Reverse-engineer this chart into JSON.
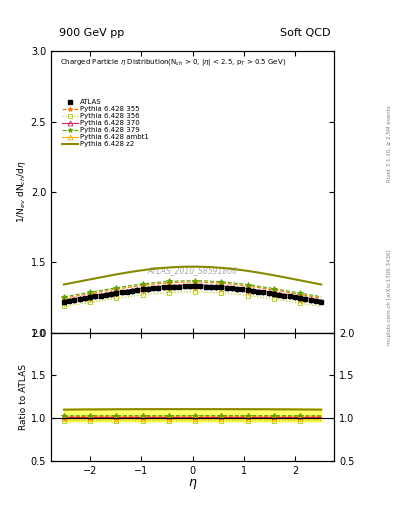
{
  "title_left": "900 GeV pp",
  "title_right": "Soft QCD",
  "ylabel_main": "1/N$_{ev}$ dN$_{ch}$/d$\\eta$",
  "ylabel_ratio": "Ratio to ATLAS",
  "xlabel": "$\\eta$",
  "annotation": "ATLAS_2010_S8591806",
  "right_label_top": "Rivet 3.1.10, ≥ 2.5M events",
  "right_label_bot": "mcplots.cern.ch [arXiv:1306.3436]",
  "plot_annotation": "Charged Particle $\\eta$ Distribution(N$_{ch}$ > 0, |$\\eta$| < 2.5, p$_T$ > 0.5 GeV)",
  "ylim_main": [
    1.0,
    3.0
  ],
  "ylim_ratio": [
    0.5,
    2.0
  ],
  "xlim": [
    -2.75,
    2.75
  ],
  "yticks_main": [
    1.0,
    1.5,
    2.0,
    2.5,
    3.0
  ],
  "yticks_ratio": [
    0.5,
    1.0,
    1.5,
    2.0
  ],
  "series": [
    {
      "label": "ATLAS",
      "color": "#000000",
      "marker": "s",
      "linestyle": "none",
      "linewidth": 0,
      "markersize": 3
    },
    {
      "label": "Pythia 6.428 355",
      "color": "#ff7700",
      "marker": "*",
      "linestyle": "--",
      "linewidth": 0.8,
      "markersize": 4,
      "markerfacecolor": "#ff7700"
    },
    {
      "label": "Pythia 6.428 356",
      "color": "#aacc00",
      "marker": "s",
      "linestyle": ":",
      "linewidth": 0.8,
      "markersize": 3,
      "markerfacecolor": "none"
    },
    {
      "label": "Pythia 6.428 370",
      "color": "#cc2255",
      "marker": "^",
      "linestyle": "-",
      "linewidth": 0.8,
      "markersize": 3,
      "markerfacecolor": "none"
    },
    {
      "label": "Pythia 6.428 379",
      "color": "#55aa00",
      "marker": "*",
      "linestyle": "--",
      "linewidth": 0.8,
      "markersize": 4,
      "markerfacecolor": "#55aa00"
    },
    {
      "label": "Pythia 6.428 ambt1",
      "color": "#ffaa00",
      "marker": "^",
      "linestyle": "-",
      "linewidth": 0.8,
      "markersize": 3,
      "markerfacecolor": "none"
    },
    {
      "label": "Pythia 6.428 z2",
      "color": "#888800",
      "marker": "none",
      "linestyle": "-",
      "linewidth": 1.5,
      "markersize": 0
    }
  ]
}
